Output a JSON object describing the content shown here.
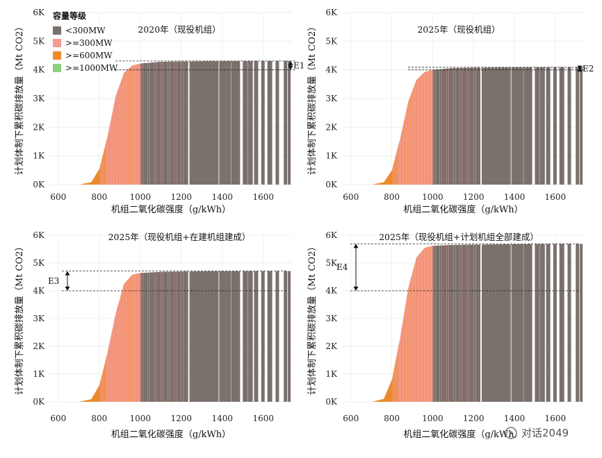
{
  "legend": {
    "title": "容量等级",
    "items": [
      {
        "label": "<300MW",
        "color": "#7a716d"
      },
      {
        "label": ">=300MW",
        "color": "#f59a8f"
      },
      {
        "label": ">=600MW",
        "color": "#ec8a2c"
      },
      {
        "label": ">=1000MW",
        "color": "#8dd07a"
      }
    ]
  },
  "watermark": "对话2049",
  "chart_data": [
    {
      "type": "area",
      "title": "2020年（现役机组）",
      "xlabel": "机组二氧化碳强度（g/kWh）",
      "ylabel": "计划体制下累积碳排放量（Mt CO2）",
      "x_ticks": [
        "600",
        "800",
        "1000",
        "1200",
        "1400",
        "1600"
      ],
      "y_ticks": [
        "0K",
        "1K",
        "2K",
        "3K",
        "4K",
        "5K",
        "6K"
      ],
      "xlim": [
        560,
        1740
      ],
      "ylim": [
        0,
        6000
      ],
      "grid": true,
      "curve": {
        "x": [
          700,
          760,
          800,
          840,
          880,
          920,
          960,
          1000,
          1100,
          1300,
          1500,
          1720
        ],
        "y": [
          0,
          80,
          550,
          1700,
          3100,
          3900,
          4150,
          4220,
          4280,
          4300,
          4305,
          4310
        ]
      },
      "annotation": {
        "label": "E1",
        "y_from": 4000,
        "y_to": 4310
      },
      "reference_lines": [
        4000,
        4310
      ]
    },
    {
      "type": "area",
      "title": "2025年（现役机组）",
      "xlabel": "机组二氧化碳强度（g/kWh）",
      "ylabel": "计划体制下累积碳排放量（Mt CO2）",
      "x_ticks": [
        "600",
        "800",
        "1000",
        "1200",
        "1400",
        "1600"
      ],
      "y_ticks": [
        "0K",
        "1K",
        "2K",
        "3K",
        "4K",
        "5K",
        "6K"
      ],
      "xlim": [
        560,
        1740
      ],
      "ylim": [
        0,
        6000
      ],
      "grid": true,
      "curve": {
        "x": [
          700,
          760,
          800,
          840,
          880,
          920,
          960,
          1000,
          1100,
          1300,
          1500,
          1720
        ],
        "y": [
          0,
          80,
          500,
          1600,
          2900,
          3650,
          3930,
          4000,
          4060,
          4080,
          4085,
          4090
        ]
      },
      "annotation": {
        "label": "E2",
        "y_from": 4000,
        "y_to": 4090
      },
      "reference_lines": [
        4000,
        4090
      ]
    },
    {
      "type": "area",
      "title": "2025年（现役机组+在建机组建成）",
      "xlabel": "机组二氧化碳强度（g/kWh）",
      "ylabel": "计划体制下累积碳排放量（Mt CO2）",
      "x_ticks": [
        "600",
        "800",
        "1000",
        "1200",
        "1400",
        "1600"
      ],
      "y_ticks": [
        "0K",
        "1K",
        "2K",
        "3K",
        "4K",
        "5K",
        "6K"
      ],
      "xlim": [
        560,
        1740
      ],
      "ylim": [
        0,
        6000
      ],
      "grid": true,
      "curve": {
        "x": [
          700,
          760,
          800,
          840,
          880,
          920,
          960,
          1000,
          1100,
          1300,
          1500,
          1720
        ],
        "y": [
          0,
          90,
          600,
          1800,
          3200,
          4250,
          4580,
          4640,
          4680,
          4700,
          4705,
          4710
        ]
      },
      "annotation": {
        "label": "E3",
        "y_from": 4000,
        "y_to": 4710
      },
      "reference_lines": [
        4000,
        4710
      ]
    },
    {
      "type": "area",
      "title": "2025年（现役机组+计划机组全部建成）",
      "xlabel": "机组二氧化碳强度（g/kWh）",
      "ylabel": "计划体制下累积碳排放量（Mt CO2）",
      "x_ticks": [
        "600",
        "800",
        "1000",
        "1200",
        "1400",
        "1600"
      ],
      "y_ticks": [
        "0K",
        "1K",
        "2K",
        "3K",
        "4K",
        "5K",
        "6K"
      ],
      "xlim": [
        560,
        1740
      ],
      "ylim": [
        0,
        6000
      ],
      "grid": true,
      "curve": {
        "x": [
          700,
          760,
          800,
          840,
          880,
          920,
          960,
          1000,
          1100,
          1300,
          1500,
          1720
        ],
        "y": [
          0,
          100,
          800,
          2300,
          4100,
          5200,
          5550,
          5620,
          5650,
          5670,
          5680,
          5690
        ]
      },
      "annotation": {
        "label": "E4",
        "y_from": 4000,
        "y_to": 5690
      },
      "reference_lines": [
        4000,
        5690
      ]
    }
  ]
}
